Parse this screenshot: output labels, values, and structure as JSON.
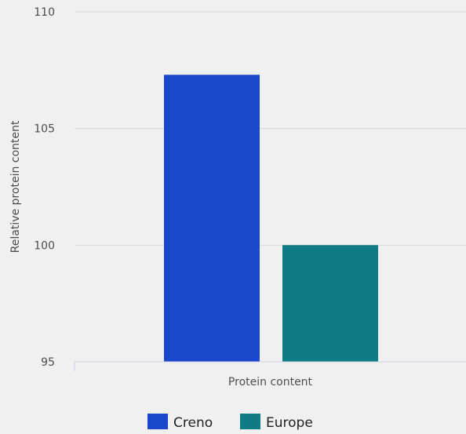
{
  "chart_data": {
    "type": "bar",
    "title": "",
    "xlabel": "",
    "ylabel": "Relative protein content",
    "categories": [
      "Protein content"
    ],
    "series": [
      {
        "name": "Creno",
        "values": [
          107.3
        ],
        "color": "#1a47cc"
      },
      {
        "name": "Europe",
        "values": [
          100
        ],
        "color": "#0e7b85"
      }
    ],
    "ylim": [
      95,
      110
    ],
    "yticks": [
      95,
      100,
      105,
      110
    ],
    "grid": true,
    "legend": "bottom-center"
  }
}
